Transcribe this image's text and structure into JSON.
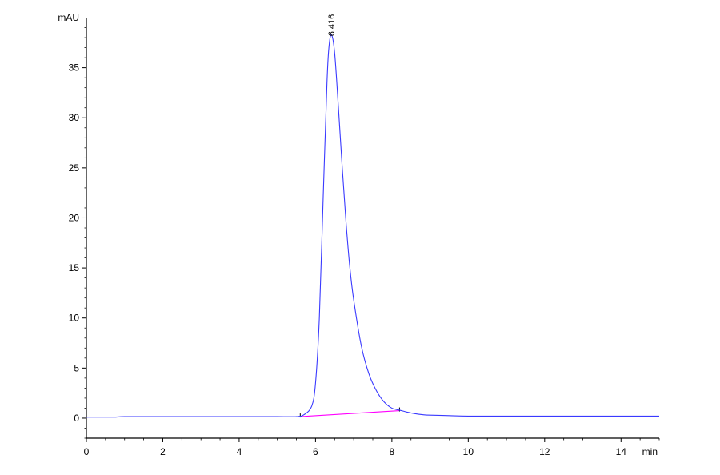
{
  "chart_data": {
    "type": "line",
    "y_unit": "mAU",
    "x_unit": "min",
    "xlim": [
      0,
      15
    ],
    "ylim": [
      -2,
      40
    ],
    "x_ticks": [
      0,
      2,
      4,
      6,
      8,
      10,
      12,
      14
    ],
    "y_ticks": [
      0,
      5,
      10,
      15,
      20,
      25,
      30,
      35
    ],
    "grid": false,
    "series": [
      {
        "color": "#3a3aff",
        "x": [
          0.0,
          0.7,
          1.0,
          2.0,
          3.0,
          4.0,
          5.0,
          5.5,
          5.7,
          5.9,
          6.0,
          6.1,
          6.2,
          6.3,
          6.35,
          6.416,
          6.5,
          6.6,
          6.7,
          6.8,
          6.9,
          7.0,
          7.2,
          7.4,
          7.6,
          7.8,
          8.0,
          8.2,
          8.4,
          8.6,
          8.8,
          9.0,
          9.5,
          10.0,
          11.0,
          12.0,
          13.0,
          14.0,
          15.0
        ],
        "y": [
          0.1,
          0.1,
          0.15,
          0.15,
          0.15,
          0.15,
          0.15,
          0.15,
          0.35,
          1.2,
          3.5,
          10.0,
          22.0,
          33.5,
          37.0,
          38.3,
          36.5,
          31.0,
          25.0,
          19.5,
          15.0,
          11.8,
          7.2,
          4.4,
          2.7,
          1.6,
          1.0,
          0.8,
          0.6,
          0.45,
          0.35,
          0.3,
          0.25,
          0.2,
          0.2,
          0.2,
          0.2,
          0.2,
          0.2
        ]
      }
    ],
    "baseline": {
      "color": "#ff00ff",
      "x": [
        5.6,
        8.2
      ],
      "y": [
        0.15,
        0.75
      ]
    },
    "peak_markers": [
      5.6,
      8.2
    ],
    "annotations": [
      {
        "text": "6.416",
        "x": 6.416,
        "y": 38.3
      }
    ]
  }
}
